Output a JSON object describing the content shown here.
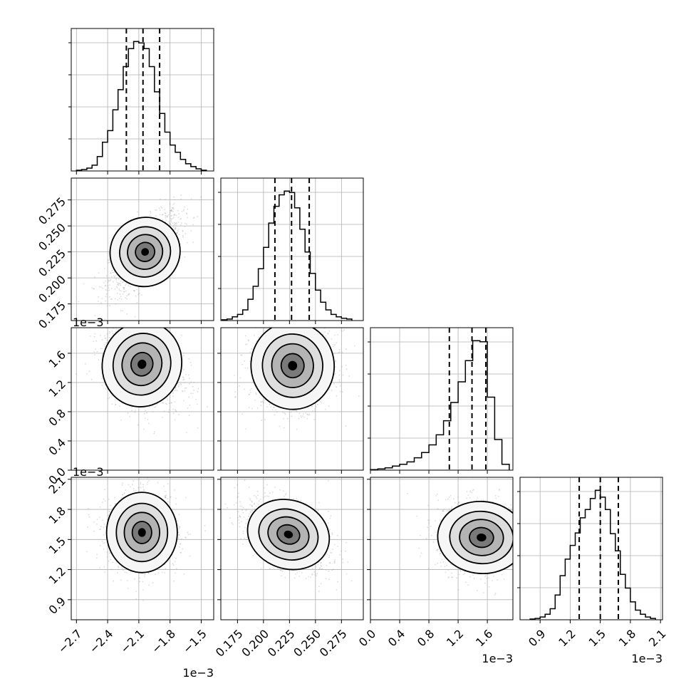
{
  "figure": {
    "type": "corner-plot",
    "colors": {
      "line": "#000000",
      "grid": "#b0b0b0",
      "scatter": "#9a9a9a",
      "density_dark": "#000000",
      "density_light": "#f2f2f2"
    },
    "grid": true
  },
  "offset_labels": {
    "x0": "1e−3",
    "x2": "1e−3",
    "x3": "1e−3",
    "y2": "1e−3",
    "y3": "1e−3"
  },
  "chart_data": [
    {
      "type": "histogram",
      "param_index": 0,
      "xlim": [
        -2.75,
        -1.38
      ],
      "bin_edges": [
        -2.7,
        -2.65,
        -2.6,
        -2.55,
        -2.5,
        -2.45,
        -2.4,
        -2.35,
        -2.3,
        -2.25,
        -2.2,
        -2.15,
        -2.1,
        -2.05,
        -2.0,
        -1.95,
        -1.9,
        -1.85,
        -1.8,
        -1.75,
        -1.7,
        -1.65,
        -1.6,
        -1.55,
        -1.5,
        -1.45
      ],
      "counts": [
        1,
        2,
        4,
        8,
        20,
        40,
        56,
        85,
        113,
        145,
        170,
        180,
        178,
        170,
        145,
        110,
        80,
        54,
        36,
        26,
        16,
        10,
        6,
        3,
        1
      ],
      "quantiles": [
        -2.22,
        -2.06,
        -1.9
      ],
      "xticks": [
        -2.7,
        -2.4,
        -2.1,
        -1.8,
        -1.5
      ],
      "xticklabels": [
        "−2.7",
        "−2.4",
        "−2.1",
        "−1.8",
        "−1.5"
      ]
    },
    {
      "type": "histogram",
      "param_index": 1,
      "xlim": [
        0.159,
        0.296
      ],
      "bin_edges": [
        0.16,
        0.165,
        0.17,
        0.175,
        0.18,
        0.185,
        0.19,
        0.195,
        0.2,
        0.205,
        0.21,
        0.215,
        0.22,
        0.225,
        0.23,
        0.235,
        0.24,
        0.245,
        0.25,
        0.255,
        0.26,
        0.265,
        0.27,
        0.275,
        0.28,
        0.285
      ],
      "counts": [
        1,
        2,
        5,
        8,
        14,
        28,
        45,
        68,
        96,
        128,
        150,
        165,
        170,
        168,
        148,
        120,
        90,
        62,
        40,
        24,
        14,
        8,
        5,
        3,
        2
      ],
      "quantiles": [
        0.211,
        0.227,
        0.244
      ],
      "xticks": [
        0.175,
        0.2,
        0.225,
        0.25,
        0.275
      ],
      "xticklabels": [
        "0.175",
        "0.200",
        "0.225",
        "0.250",
        "0.275"
      ]
    },
    {
      "type": "histogram",
      "param_index": 2,
      "xlim": [
        0.0,
        1.95
      ],
      "bin_edges": [
        0.0,
        0.1,
        0.2,
        0.3,
        0.4,
        0.5,
        0.6,
        0.7,
        0.8,
        0.9,
        1.0,
        1.1,
        1.2,
        1.3,
        1.4,
        1.5,
        1.6,
        1.7,
        1.8,
        1.9
      ],
      "counts": [
        1,
        2,
        4,
        7,
        10,
        14,
        21,
        30,
        43,
        60,
        84,
        115,
        150,
        186,
        220,
        218,
        124,
        52,
        10
      ],
      "quantiles": [
        1.08,
        1.39,
        1.58
      ],
      "xticks": [
        0.0,
        0.4,
        0.8,
        1.2,
        1.6
      ],
      "xticklabels": [
        "0.0",
        "0.4",
        "0.8",
        "1.2",
        "1.6"
      ]
    },
    {
      "type": "histogram",
      "param_index": 3,
      "xlim": [
        0.7,
        2.12
      ],
      "bin_edges": [
        0.8,
        0.85,
        0.9,
        0.95,
        1.0,
        1.05,
        1.1,
        1.15,
        1.2,
        1.25,
        1.3,
        1.35,
        1.4,
        1.45,
        1.5,
        1.55,
        1.6,
        1.65,
        1.7,
        1.75,
        1.8,
        1.85,
        1.9,
        1.95,
        2.0,
        2.05
      ],
      "counts": [
        1,
        2,
        4,
        8,
        16,
        36,
        64,
        88,
        108,
        126,
        148,
        160,
        176,
        188,
        178,
        160,
        125,
        100,
        66,
        46,
        26,
        14,
        8,
        4,
        2
      ],
      "quantiles": [
        1.29,
        1.5,
        1.68
      ],
      "xticks": [
        0.9,
        1.2,
        1.5,
        1.8,
        2.1
      ],
      "xticklabels": [
        "0.9",
        "1.2",
        "1.5",
        "1.8",
        "2.1"
      ]
    },
    {
      "type": "scatter-density",
      "params": [
        0,
        1
      ],
      "xlim": [
        -2.75,
        -1.38
      ],
      "ylim": [
        0.159,
        0.296
      ],
      "mode": [
        -2.04,
        0.225
      ],
      "spread": [
        0.17,
        0.019
      ],
      "correlation": 0.7,
      "yticks": [
        0.175,
        0.2,
        0.225,
        0.25,
        0.275
      ],
      "yticklabels": [
        "0.175",
        "0.200",
        "0.225",
        "0.250",
        "0.275"
      ]
    },
    {
      "type": "scatter-density",
      "params": [
        0,
        2
      ],
      "xlim": [
        -2.75,
        -1.38
      ],
      "ylim": [
        0.0,
        1.95
      ],
      "mode": [
        -2.07,
        1.45
      ],
      "spread": [
        0.19,
        0.3
      ],
      "correlation": -0.3,
      "yticks": [
        0.0,
        0.4,
        0.8,
        1.2,
        1.6
      ],
      "yticklabels": [
        "0.0",
        "0.4",
        "0.8",
        "1.2",
        "1.6"
      ]
    },
    {
      "type": "scatter-density",
      "params": [
        1,
        2
      ],
      "xlim": [
        0.159,
        0.296
      ],
      "ylim": [
        0.0,
        1.95
      ],
      "mode": [
        0.228,
        1.43
      ],
      "spread": [
        0.02,
        0.3
      ],
      "correlation": 0.1
    },
    {
      "type": "scatter-density",
      "params": [
        0,
        3
      ],
      "xlim": [
        -2.75,
        -1.38
      ],
      "ylim": [
        0.7,
        2.12
      ],
      "mode": [
        -2.07,
        1.57
      ],
      "spread": [
        0.17,
        0.2
      ],
      "correlation": 0.0,
      "yticks": [
        0.9,
        1.2,
        1.5,
        1.8,
        2.1
      ],
      "yticklabels": [
        "0.9",
        "1.2",
        "1.5",
        "1.8",
        "2.1"
      ]
    },
    {
      "type": "scatter-density",
      "params": [
        1,
        3
      ],
      "xlim": [
        0.159,
        0.296
      ],
      "ylim": [
        0.7,
        2.12
      ],
      "mode": [
        0.224,
        1.55
      ],
      "spread": [
        0.02,
        0.18
      ],
      "correlation": -0.45
    },
    {
      "type": "scatter-density",
      "params": [
        2,
        3
      ],
      "xlim": [
        0.0,
        1.95
      ],
      "ylim": [
        0.7,
        2.12
      ],
      "mode": [
        1.52,
        1.52
      ],
      "spread": [
        0.3,
        0.18
      ],
      "correlation": -0.1
    }
  ]
}
